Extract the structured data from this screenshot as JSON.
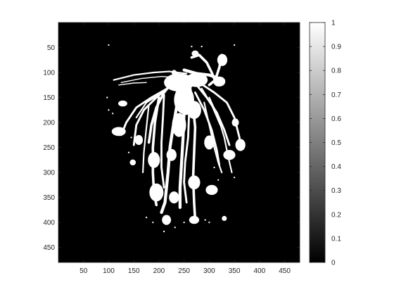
{
  "chart_data": {
    "type": "heatmap",
    "title": "",
    "xlabel": "",
    "ylabel": "",
    "colormap": "gray",
    "colors": {
      "low": "#000000",
      "high": "#ffffff",
      "axis": "#262626"
    },
    "image_size": {
      "cols": 480,
      "rows": 480
    },
    "xlim": [
      0,
      480
    ],
    "ylim": [
      480,
      0
    ],
    "clim": [
      0,
      1
    ],
    "binary_values": [
      0,
      1
    ],
    "x_ticks": [
      50,
      100,
      150,
      200,
      250,
      300,
      350,
      400,
      450
    ],
    "x_tick_labels": [
      "50",
      "100",
      "150",
      "200",
      "250",
      "300",
      "350",
      "400",
      "450"
    ],
    "y_ticks": [
      50,
      100,
      150,
      200,
      250,
      300,
      350,
      400,
      450
    ],
    "y_tick_labels": [
      "50",
      "100",
      "150",
      "200",
      "250",
      "300",
      "350",
      "400",
      "450"
    ],
    "colorbar": {
      "ticks": [
        0,
        0.1,
        0.2,
        0.3,
        0.4,
        0.5,
        0.6,
        0.7,
        0.8,
        0.9,
        1
      ],
      "tick_labels": [
        "0",
        "0.1",
        "0.2",
        "0.3",
        "0.4",
        "0.5",
        "0.6",
        "0.7",
        "0.8",
        "0.9",
        "1"
      ]
    },
    "mask": {
      "description_value": 1,
      "strokes": [
        {
          "pts": [
            [
              110,
              115
            ],
            [
              150,
              105
            ],
            [
              190,
              100
            ],
            [
              220,
              98
            ],
            [
              255,
              102
            ]
          ],
          "w": 3
        },
        {
          "pts": [
            [
              125,
              120
            ],
            [
              165,
              112
            ],
            [
              205,
              108
            ],
            [
              235,
              110
            ]
          ],
          "w": 2
        },
        {
          "pts": [
            [
              120,
              125
            ],
            [
              150,
              121
            ],
            [
              175,
              120
            ]
          ],
          "w": 2
        },
        {
          "pts": [
            [
              230,
              100
            ],
            [
              245,
              115
            ],
            [
              255,
              140
            ],
            [
              255,
              180
            ]
          ],
          "w": 10
        },
        {
          "pts": [
            [
              250,
              95
            ],
            [
              275,
              102
            ],
            [
              300,
              105
            ],
            [
              320,
              112
            ]
          ],
          "w": 6
        },
        {
          "pts": [
            [
              265,
              70
            ],
            [
              280,
              65
            ],
            [
              295,
              80
            ],
            [
              305,
              100
            ],
            [
              315,
              125
            ]
          ],
          "w": 5
        },
        {
          "pts": [
            [
              325,
              65
            ],
            [
              320,
              90
            ],
            [
              312,
              115
            ],
            [
              300,
              125
            ]
          ],
          "w": 5
        },
        {
          "pts": [
            [
              230,
              115
            ],
            [
              210,
              140
            ],
            [
              195,
              170
            ],
            [
              185,
              205
            ],
            [
              180,
              240
            ]
          ],
          "w": 5
        },
        {
          "pts": [
            [
              225,
              125
            ],
            [
              195,
              150
            ],
            [
              170,
              175
            ],
            [
              155,
              205
            ],
            [
              150,
              245
            ]
          ],
          "w": 4
        },
        {
          "pts": [
            [
              220,
              130
            ],
            [
              185,
              150
            ],
            [
              155,
              170
            ],
            [
              135,
              200
            ],
            [
              125,
              225
            ]
          ],
          "w": 4
        },
        {
          "pts": [
            [
              215,
              135
            ],
            [
              175,
              160
            ],
            [
              155,
              190
            ]
          ],
          "w": 3
        },
        {
          "pts": [
            [
              240,
              130
            ],
            [
              235,
              170
            ],
            [
              228,
              210
            ],
            [
              222,
              250
            ],
            [
              218,
              300
            ],
            [
              212,
              360
            ],
            [
              205,
              380
            ]
          ],
          "w": 6
        },
        {
          "pts": [
            [
              250,
              135
            ],
            [
              250,
              180
            ],
            [
              248,
              230
            ],
            [
              245,
              280
            ],
            [
              242,
              330
            ],
            [
              242,
              370
            ]
          ],
          "w": 6
        },
        {
          "pts": [
            [
              262,
              130
            ],
            [
              268,
              170
            ],
            [
              272,
              210
            ],
            [
              270,
              260
            ],
            [
              268,
              310
            ],
            [
              270,
              360
            ],
            [
              272,
              395
            ]
          ],
          "w": 5
        },
        {
          "pts": [
            [
              275,
              125
            ],
            [
              295,
              150
            ],
            [
              315,
              180
            ],
            [
              330,
              215
            ],
            [
              340,
              245
            ]
          ],
          "w": 4
        },
        {
          "pts": [
            [
              280,
              120
            ],
            [
              310,
              140
            ],
            [
              335,
              160
            ],
            [
              350,
              190
            ],
            [
              360,
              230
            ],
            [
              362,
              255
            ]
          ],
          "w": 4
        },
        {
          "pts": [
            [
              272,
              140
            ],
            [
              290,
              175
            ],
            [
              305,
              215
            ],
            [
              315,
              255
            ],
            [
              320,
              285
            ]
          ],
          "w": 4
        },
        {
          "pts": [
            [
              285,
              132
            ],
            [
              305,
              165
            ],
            [
              322,
              205
            ]
          ],
          "w": 3
        },
        {
          "pts": [
            [
              200,
              150
            ],
            [
              192,
              200
            ],
            [
              188,
              250
            ],
            [
              188,
              300
            ],
            [
              190,
              340
            ],
            [
              195,
              365
            ]
          ],
          "w": 5
        },
        {
          "pts": [
            [
              210,
              145
            ],
            [
              208,
              190
            ],
            [
              205,
              240
            ],
            [
              205,
              290
            ],
            [
              210,
              330
            ]
          ],
          "w": 4
        },
        {
          "pts": [
            [
              180,
              165
            ],
            [
              175,
              210
            ],
            [
              170,
              260
            ],
            [
              168,
              300
            ]
          ],
          "w": 3
        },
        {
          "pts": [
            [
              290,
              160
            ],
            [
              300,
              205
            ],
            [
              310,
              250
            ],
            [
              318,
              280
            ],
            [
              325,
              300
            ]
          ],
          "w": 3
        },
        {
          "pts": [
            [
              300,
              150
            ],
            [
              318,
              190
            ],
            [
              330,
              230
            ],
            [
              338,
              270
            ],
            [
              345,
              300
            ]
          ],
          "w": 3
        },
        {
          "pts": [
            [
              260,
              180
            ],
            [
              258,
              230
            ],
            [
              252,
              280
            ],
            [
              250,
              320
            ],
            [
              255,
              360
            ]
          ],
          "w": 4
        }
      ],
      "blobs": [
        {
          "c": [
            240,
            120
          ],
          "r": [
            30,
            18
          ]
        },
        {
          "c": [
            275,
            115
          ],
          "r": [
            22,
            14
          ]
        },
        {
          "c": [
            250,
            155
          ],
          "r": [
            20,
            28
          ]
        },
        {
          "c": [
            270,
            175
          ],
          "r": [
            14,
            18
          ]
        },
        {
          "c": [
            240,
            205
          ],
          "r": [
            14,
            24
          ]
        },
        {
          "c": [
            320,
            118
          ],
          "r": [
            12,
            10
          ]
        },
        {
          "c": [
            326,
            75
          ],
          "r": [
            10,
            12
          ]
        },
        {
          "c": [
            272,
            62
          ],
          "r": [
            7,
            6
          ]
        },
        {
          "c": [
            120,
            218
          ],
          "r": [
            14,
            9
          ]
        },
        {
          "c": [
            128,
            162
          ],
          "r": [
            9,
            6
          ]
        },
        {
          "c": [
            190,
            275
          ],
          "r": [
            12,
            16
          ]
        },
        {
          "c": [
            225,
            265
          ],
          "r": [
            10,
            12
          ]
        },
        {
          "c": [
            195,
            340
          ],
          "r": [
            14,
            18
          ]
        },
        {
          "c": [
            230,
            350
          ],
          "r": [
            10,
            12
          ]
        },
        {
          "c": [
            270,
            320
          ],
          "r": [
            12,
            14
          ]
        },
        {
          "c": [
            305,
            335
          ],
          "r": [
            12,
            10
          ]
        },
        {
          "c": [
            340,
            265
          ],
          "r": [
            12,
            10
          ]
        },
        {
          "c": [
            362,
            245
          ],
          "r": [
            10,
            12
          ]
        },
        {
          "c": [
            352,
            200
          ],
          "r": [
            7,
            8
          ]
        },
        {
          "c": [
            300,
            240
          ],
          "r": [
            10,
            14
          ]
        },
        {
          "c": [
            215,
            395
          ],
          "r": [
            9,
            10
          ]
        },
        {
          "c": [
            270,
            395
          ],
          "r": [
            10,
            8
          ]
        },
        {
          "c": [
            330,
            392
          ],
          "r": [
            5,
            5
          ]
        },
        {
          "c": [
            160,
            235
          ],
          "r": [
            8,
            10
          ]
        },
        {
          "c": [
            148,
            280
          ],
          "r": [
            6,
            6
          ]
        }
      ],
      "specks": [
        [
          100,
          45
        ],
        [
          97,
          150
        ],
        [
          100,
          175
        ],
        [
          108,
          182
        ],
        [
          265,
          48
        ],
        [
          285,
          48
        ],
        [
          350,
          45
        ],
        [
          250,
          400
        ],
        [
          292,
          395
        ],
        [
          300,
          400
        ],
        [
          350,
          310
        ],
        [
          310,
          290
        ],
        [
          175,
          390
        ],
        [
          188,
          400
        ],
        [
          140,
          260
        ],
        [
          145,
          230
        ],
        [
          210,
          418
        ],
        [
          232,
          410
        ],
        [
          318,
          315
        ]
      ]
    }
  }
}
